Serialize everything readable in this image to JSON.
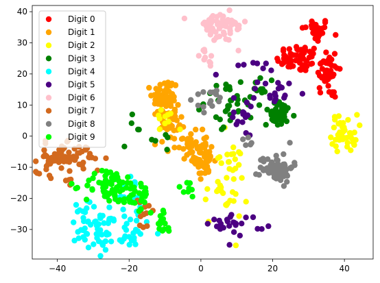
{
  "chart_data": {
    "type": "scatter",
    "title": "",
    "xlabel": "",
    "ylabel": "",
    "xlim": [
      -47,
      48
    ],
    "ylim": [
      -39.5,
      42
    ],
    "xticks": [
      -40,
      -20,
      0,
      20,
      40
    ],
    "yticks": [
      -30,
      -20,
      -10,
      0,
      10,
      20,
      30,
      40
    ],
    "grid": false,
    "legend_position": "upper-left",
    "series": [
      {
        "name": "Digit 0",
        "color": "#ff0000",
        "clusters": [
          {
            "cx": 32,
            "cy": 34,
            "sx": 2.0,
            "sy": 2.0,
            "n": 30
          },
          {
            "cx": 27,
            "cy": 25,
            "sx": 3.0,
            "sy": 2.2,
            "n": 55
          },
          {
            "cx": 35,
            "cy": 21,
            "sx": 1.6,
            "sy": 4.0,
            "n": 45
          },
          {
            "cx": 37,
            "cy": 14,
            "sx": 0.8,
            "sy": 1.0,
            "n": 5
          }
        ]
      },
      {
        "name": "Digit 1",
        "color": "#ffa500",
        "clusters": [
          {
            "cx": -10,
            "cy": 12,
            "sx": 1.8,
            "sy": 3.5,
            "n": 65
          },
          {
            "cx": -8,
            "cy": 4,
            "sx": 1.8,
            "sy": 2.5,
            "n": 30
          },
          {
            "cx": -3,
            "cy": -3,
            "sx": 2.5,
            "sy": 2.2,
            "n": 45
          },
          {
            "cx": 1,
            "cy": -8,
            "sx": 1.4,
            "sy": 2.5,
            "n": 40
          }
        ]
      },
      {
        "name": "Digit 2",
        "color": "#ffff00",
        "clusters": [
          {
            "cx": 40,
            "cy": 1,
            "sx": 1.8,
            "sy": 3.0,
            "n": 45
          },
          {
            "cx": 7,
            "cy": -15,
            "sx": 3.0,
            "sy": 7.0,
            "n": 40
          },
          {
            "cx": -10,
            "cy": 5,
            "sx": 1.5,
            "sy": 2.5,
            "n": 10
          }
        ]
      },
      {
        "name": "Digit 3",
        "color": "#008000",
        "clusters": [
          {
            "cx": 10,
            "cy": 11,
            "sx": 4.5,
            "sy": 3.5,
            "n": 45
          },
          {
            "cx": 22,
            "cy": 7,
            "sx": 2.2,
            "sy": 2.0,
            "n": 40
          },
          {
            "cx": -14,
            "cy": 0,
            "sx": 5.0,
            "sy": 5.0,
            "n": 10
          }
        ]
      },
      {
        "name": "Digit 4",
        "color": "#00ffff",
        "clusters": [
          {
            "cx": -28,
            "cy": -30,
            "sx": 3.5,
            "sy": 3.5,
            "n": 60
          },
          {
            "cx": -33,
            "cy": -23,
            "sx": 1.2,
            "sy": 2.5,
            "n": 8
          },
          {
            "cx": -20,
            "cy": -20,
            "sx": 2.0,
            "sy": 3.5,
            "n": 20
          },
          {
            "cx": -18,
            "cy": -31,
            "sx": 2.0,
            "sy": 2.5,
            "n": 15
          }
        ]
      },
      {
        "name": "Digit 5",
        "color": "#4b0082",
        "clusters": [
          {
            "cx": 10,
            "cy": -28,
            "sx": 4.0,
            "sy": 1.8,
            "n": 25
          },
          {
            "cx": 21,
            "cy": 14,
            "sx": 2.5,
            "sy": 2.0,
            "n": 18
          },
          {
            "cx": 12,
            "cy": 7,
            "sx": 1.5,
            "sy": 3.5,
            "n": 15
          },
          {
            "cx": 11,
            "cy": 21,
            "sx": 3.5,
            "sy": 1.5,
            "n": 8
          }
        ]
      },
      {
        "name": "Digit 6",
        "color": "#ffc0cb",
        "clusters": [
          {
            "cx": 5,
            "cy": 35,
            "sx": 4.0,
            "sy": 2.5,
            "n": 55
          },
          {
            "cx": 2,
            "cy": 25,
            "sx": 2.0,
            "sy": 1.5,
            "n": 10
          }
        ]
      },
      {
        "name": "Digit 7",
        "color": "#d2691e",
        "clusters": [
          {
            "cx": -40,
            "cy": -7,
            "sx": 3.2,
            "sy": 2.3,
            "n": 55
          },
          {
            "cx": -32,
            "cy": -7,
            "sx": 2.5,
            "sy": 2.5,
            "n": 20
          },
          {
            "cx": -16,
            "cy": -26,
            "sx": 1.5,
            "sy": 3.0,
            "n": 12
          },
          {
            "cx": -38,
            "cy": -15,
            "sx": 1.5,
            "sy": 1.5,
            "n": 5
          }
        ]
      },
      {
        "name": "Digit 8",
        "color": "#808080",
        "clusters": [
          {
            "cx": 21,
            "cy": -10,
            "sx": 2.3,
            "sy": 2.3,
            "n": 75
          },
          {
            "cx": 3,
            "cy": 12,
            "sx": 3.0,
            "sy": 2.0,
            "n": 15
          },
          {
            "cx": 14,
            "cy": -3,
            "sx": 1.0,
            "sy": 1.5,
            "n": 5
          }
        ]
      },
      {
        "name": "Digit 9",
        "color": "#00ff00",
        "clusters": [
          {
            "cx": -26,
            "cy": -16,
            "sx": 3.2,
            "sy": 2.8,
            "n": 60
          },
          {
            "cx": -18,
            "cy": -19,
            "sx": 2.0,
            "sy": 2.8,
            "n": 30
          },
          {
            "cx": -11,
            "cy": -28,
            "sx": 1.5,
            "sy": 3.0,
            "n": 15
          },
          {
            "cx": -4,
            "cy": -17,
            "sx": 1.5,
            "sy": 1.5,
            "n": 8
          }
        ]
      }
    ]
  }
}
